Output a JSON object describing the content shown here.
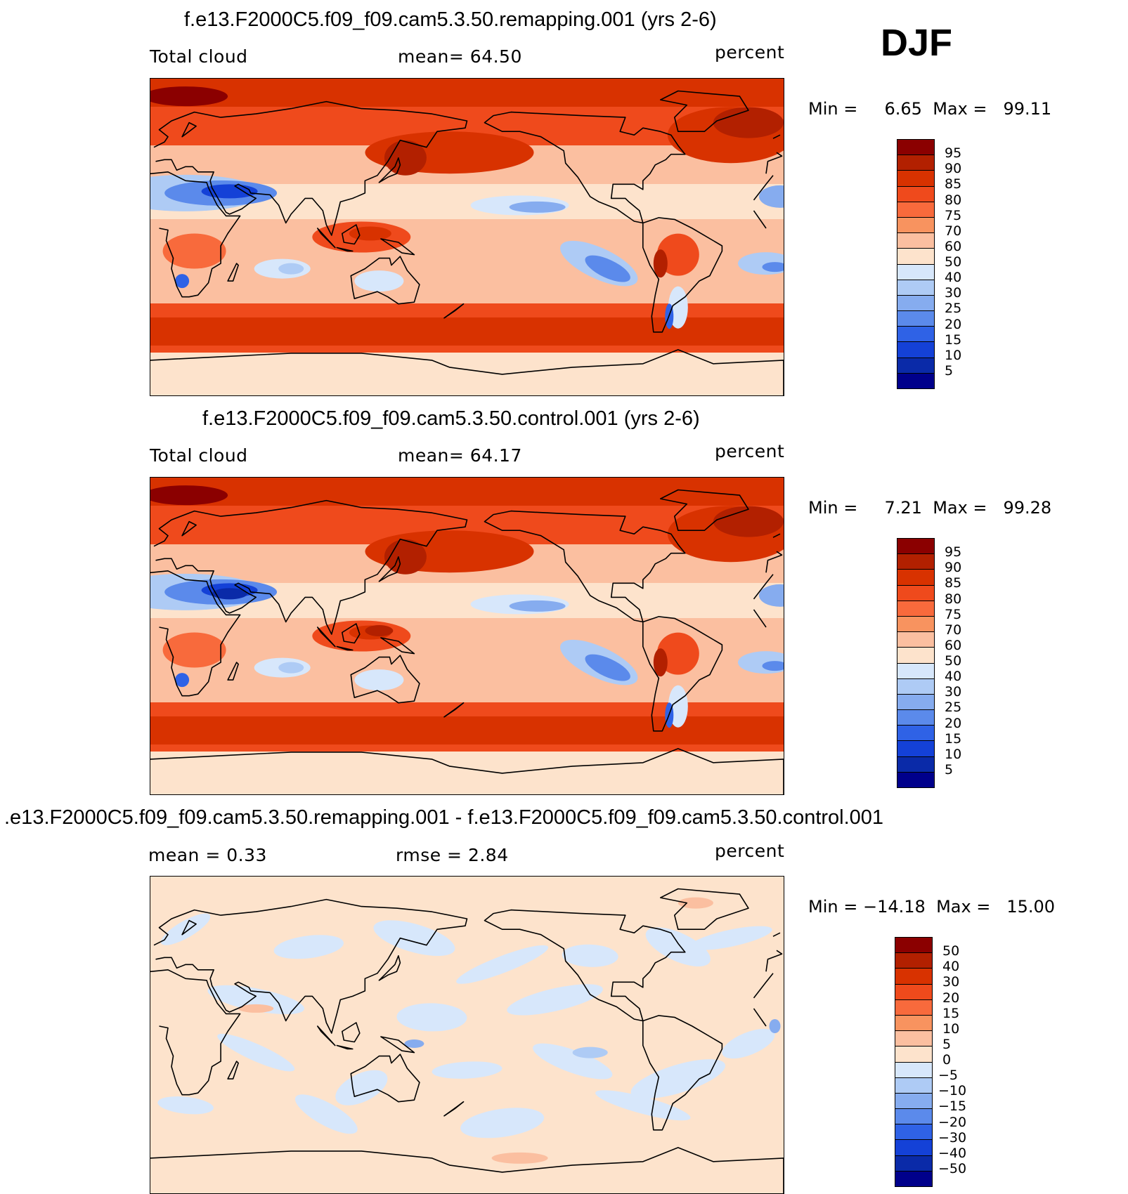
{
  "season": "DJF",
  "panels": [
    {
      "title": "f.e13.F2000C5.f09_f09.cam5.3.50.remapping.001 (yrs 2-6)",
      "left_label": "Total cloud",
      "center_label": "mean=   64.50",
      "right_label": "percent",
      "min_label": "Min =",
      "min_value": "6.65",
      "max_label": "Max =",
      "max_value": "99.11"
    },
    {
      "title": "f.e13.F2000C5.f09_f09.cam5.3.50.control.001 (yrs 2-6)",
      "left_label": "Total cloud",
      "center_label": "mean=   64.17",
      "right_label": "percent",
      "min_label": "Min =",
      "min_value": "7.21",
      "max_label": "Max =",
      "max_value": "99.28"
    },
    {
      "title": ".e13.F2000C5.f09_f09.cam5.3.50.remapping.001 - f.e13.F2000C5.f09_f09.cam5.3.50.control.001",
      "left_label": "mean =    0.33",
      "center_label": "rmse =    2.84",
      "right_label": "percent",
      "min_label": "Min =",
      "min_value": "−14.18",
      "max_label": "Max =",
      "max_value": "15.00"
    }
  ],
  "chart_data": [
    {
      "type": "heatmap",
      "title": "f.e13.F2000C5.f09_f09.cam5.3.50.remapping.001 (yrs 2-6)",
      "variable": "Total cloud",
      "units": "percent",
      "mean": 64.5,
      "min": 6.65,
      "max": 99.11,
      "colorbar_levels": [
        "95",
        "90",
        "85",
        "80",
        "75",
        "70",
        "60",
        "50",
        "40",
        "30",
        "25",
        "20",
        "15",
        "10",
        "5"
      ],
      "colorbar_colors": [
        "#8b0000",
        "#b22000",
        "#d83200",
        "#ef4a1c",
        "#f86a3c",
        "#f8935f",
        "#fbbfa0",
        "#fde3cc",
        "#ffffff",
        "#d7e7fb",
        "#aecbf5",
        "#86acef",
        "#5b8aeb",
        "#2f62e6",
        "#1441d7",
        "#0a2aa8",
        "#00008b"
      ]
    },
    {
      "type": "heatmap",
      "title": "f.e13.F2000C5.f09_f09.cam5.3.50.control.001 (yrs 2-6)",
      "variable": "Total cloud",
      "units": "percent",
      "mean": 64.17,
      "min": 7.21,
      "max": 99.28,
      "colorbar_levels": [
        "95",
        "90",
        "85",
        "80",
        "75",
        "70",
        "60",
        "50",
        "40",
        "30",
        "25",
        "20",
        "15",
        "10",
        "5"
      ],
      "colorbar_colors": [
        "#8b0000",
        "#b22000",
        "#d83200",
        "#ef4a1c",
        "#f86a3c",
        "#f8935f",
        "#fbbfa0",
        "#fde3cc",
        "#ffffff",
        "#d7e7fb",
        "#aecbf5",
        "#86acef",
        "#5b8aeb",
        "#2f62e6",
        "#1441d7",
        "#0a2aa8",
        "#00008b"
      ]
    },
    {
      "type": "heatmap",
      "title": "remapping.001 - control.001",
      "units": "percent",
      "mean": 0.33,
      "rmse": 2.84,
      "min": -14.18,
      "max": 15.0,
      "colorbar_levels": [
        "50",
        "40",
        "30",
        "20",
        "15",
        "10",
        "5",
        "0",
        "−5",
        "−10",
        "−15",
        "−20",
        "−30",
        "−40",
        "−50"
      ],
      "colorbar_colors": [
        "#8b0000",
        "#b22000",
        "#d83200",
        "#ef4a1c",
        "#f86a3c",
        "#f8935f",
        "#fbbfa0",
        "#fde3cc",
        "#d7e7fb",
        "#aecbf5",
        "#86acef",
        "#5b8aeb",
        "#2f62e6",
        "#1441d7",
        "#0a2aa8",
        "#00008b"
      ]
    }
  ]
}
